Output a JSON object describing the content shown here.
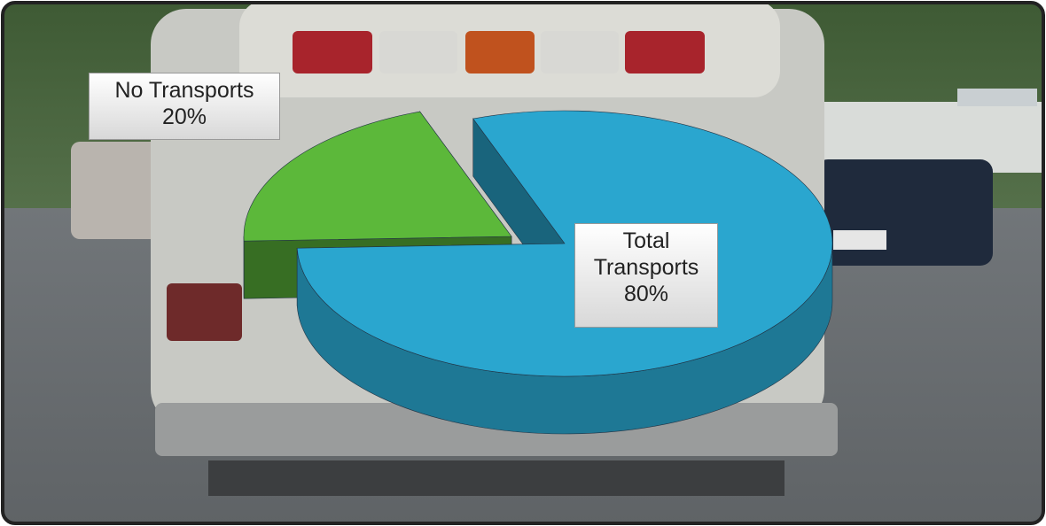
{
  "chart_data": {
    "type": "pie",
    "categories": [
      "No Transports",
      "Total Transports"
    ],
    "values": [
      20,
      80
    ],
    "value_labels": [
      "20%",
      "80%"
    ],
    "colors": [
      "#5cb83a",
      "#2aa6cf"
    ]
  }
}
